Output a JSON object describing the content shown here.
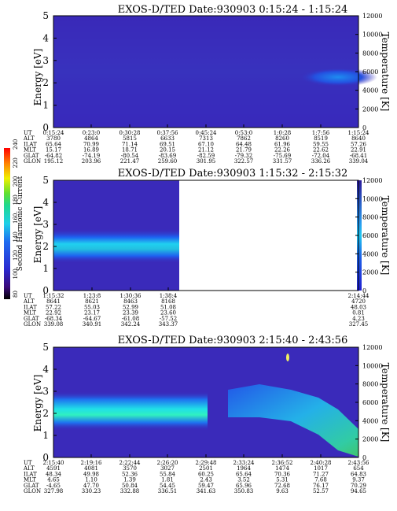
{
  "cbar": {
    "label": "Second Harmonic Current",
    "ticks": [
      "240",
      "220",
      "200",
      "180",
      "160",
      "140",
      "120",
      "100",
      "80"
    ]
  },
  "panels": [
    {
      "title": "EXOS-D/TED   Date:930903  0:15:24 - 1:15:24",
      "ylabel": "Energy [eV]",
      "y2label": "Temperature [K]",
      "yticks": [
        "0",
        "1",
        "2",
        "3",
        "4",
        "5"
      ],
      "y2ticks": [
        "0",
        "2000",
        "4000",
        "6000",
        "8000",
        "10000",
        "12000"
      ],
      "rowlabels": [
        "UT",
        "ALT",
        "ILAT",
        "MLT",
        "GLAT",
        "GLON"
      ],
      "cols": [
        [
          "0:15:24",
          "3780",
          "65.64",
          "15.17",
          "-64.82",
          "195.12"
        ],
        [
          "0:23:0",
          "4864",
          "70.99",
          "16.89",
          "-74.19",
          "203.96"
        ],
        [
          "0:30:28",
          "5815",
          "71.14",
          "18.71",
          "-80.54",
          "221.47"
        ],
        [
          "0:37:56",
          "6633",
          "69.51",
          "20.15",
          "-83.69",
          "259.60"
        ],
        [
          "0:45:24",
          "7313",
          "67.10",
          "21.12",
          "-82.59",
          "301.95"
        ],
        [
          "0:53:0",
          "7862",
          "64.48",
          "21.79",
          "-79.32",
          "322.57"
        ],
        [
          "1:0:28",
          "8260",
          "61.96",
          "22.26",
          "-75.69",
          "331.57"
        ],
        [
          "1:7:56",
          "8519",
          "59.55",
          "22.62",
          "-72.04",
          "336.26"
        ],
        [
          "1:15:24",
          "8640",
          "57.26",
          "22.91",
          "-68.41",
          "339.04"
        ]
      ]
    },
    {
      "title": "EXOS-D/TED   Date:930903  1:15:32 - 2:15:32",
      "ylabel": "Energy [eV]",
      "y2label": "Temperature [K]",
      "yticks": [
        "0",
        "1",
        "2",
        "3",
        "4",
        "5"
      ],
      "y2ticks": [
        "0",
        "2000",
        "4000",
        "6000",
        "8000",
        "10000",
        "12000"
      ],
      "rowlabels": [
        "UT",
        "ALT",
        "ILAT",
        "MLT",
        "GLAT",
        "GLON"
      ],
      "cols": [
        [
          "1:15:32",
          "8641",
          "57.22",
          "22.92",
          "-68.34",
          "339.08"
        ],
        [
          "1:23:8",
          "8621",
          "55.03",
          "23.17",
          "-64.67",
          "340.91"
        ],
        [
          "1:30:36",
          "8463",
          "52.99",
          "23.39",
          "-61.08",
          "342.24"
        ],
        [
          "1:38:4",
          "8168",
          "51.08",
          "23.60",
          "-57.52",
          "343.37"
        ]
      ],
      "lastcol": [
        "2:14:44",
        "4720",
        "48.03",
        "0.81",
        "4.23",
        "327.45"
      ]
    },
    {
      "title": "EXOS-D/TED   Date:930903  2:15:40 - 2:43:56",
      "ylabel": "Energy [eV]",
      "y2label": "Temperature [K]",
      "yticks": [
        "0",
        "1",
        "2",
        "3",
        "4",
        "5"
      ],
      "y2ticks": [
        "0",
        "2000",
        "4000",
        "6000",
        "8000",
        "10000",
        "12000"
      ],
      "rowlabels": [
        "UT",
        "ALT",
        "ILAT",
        "MLT",
        "GLAT",
        "GLON"
      ],
      "cols": [
        [
          "2:15:40",
          "4591",
          "48.34",
          "4.65",
          "-4.65",
          "327.98"
        ],
        [
          "2:19:16",
          "4081",
          "49.98",
          "1.10",
          "47.70",
          "330.23"
        ],
        [
          "2:22:44",
          "3570",
          "52.36",
          "1.39",
          "50.84",
          "332.88"
        ],
        [
          "2:26:20",
          "3027",
          "55.84",
          "1.81",
          "54.45",
          "336.51"
        ],
        [
          "2:29:48",
          "2501",
          "60.25",
          "2.43",
          "59.47",
          "341.63"
        ],
        [
          "2:33:24",
          "1964",
          "65.64",
          "3.52",
          "65.96",
          "350.83"
        ],
        [
          "2:36:52",
          "1474",
          "70.36",
          "5.31",
          "72.68",
          "9.63"
        ],
        [
          "2:40:28",
          "1017",
          "71.27",
          "7.68",
          "76.17",
          "52.57"
        ],
        [
          "2:43:56",
          "654",
          "64.83",
          "9.37",
          "70.29",
          "94.65"
        ]
      ]
    }
  ],
  "chart_data": [
    {
      "type": "heatmap",
      "title": "EXOS-D/TED   Date:930903  0:15:24 - 1:15:24",
      "ylabel": "Energy [eV]",
      "y2label": "Temperature [K]",
      "ylim": [
        0,
        5
      ],
      "y2lim": [
        0,
        12000
      ],
      "features": [
        {
          "x_range": [
            "1:0:28",
            "1:15:24"
          ],
          "energy_center_eV": 2.2,
          "intensity": "moderate"
        }
      ]
    },
    {
      "type": "heatmap",
      "title": "EXOS-D/TED   Date:930903  1:15:32 - 2:15:32",
      "ylabel": "Energy [eV]",
      "y2label": "Temperature [K]",
      "ylim": [
        0,
        5
      ],
      "y2lim": [
        0,
        12000
      ],
      "data_coverage": [
        "1:15:32",
        "1:38:4"
      ],
      "features": [
        {
          "x_range": [
            "1:15:32",
            "1:38:4"
          ],
          "energy_center_eV": 2.1,
          "intensity": "high"
        }
      ]
    },
    {
      "type": "heatmap",
      "title": "EXOS-D/TED   Date:930903  2:15:40 - 2:43:56",
      "ylabel": "Energy [eV]",
      "y2label": "Temperature [K]",
      "ylim": [
        0,
        5
      ],
      "y2lim": [
        0,
        12000
      ],
      "features": [
        {
          "x_range": [
            "2:15:40",
            "2:29:48"
          ],
          "energy_center_eV": 2.2,
          "intensity": "high"
        },
        {
          "x_range": [
            "2:33:24",
            "2:43:56"
          ],
          "energy_center_eV": 1.6,
          "intensity": "high"
        }
      ]
    }
  ]
}
